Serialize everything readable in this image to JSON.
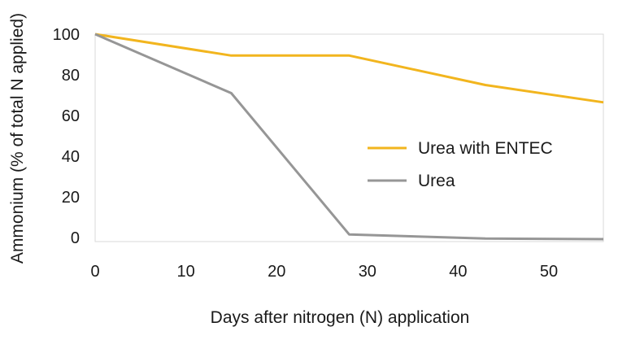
{
  "chart_data": {
    "type": "line",
    "title": "",
    "xlabel": "Days after nitrogen (N) application",
    "ylabel": "Ammonium (% of total N applied)",
    "xlim": [
      0,
      56
    ],
    "ylim": [
      0,
      100
    ],
    "xticks": [
      0,
      10,
      20,
      30,
      40,
      50
    ],
    "yticks": [
      0,
      20,
      40,
      60,
      80,
      100
    ],
    "grid": false,
    "legend_position": "right",
    "series": [
      {
        "name": "Urea with ENTEC",
        "color": "#F2B51E",
        "points": [
          [
            0,
            100
          ],
          [
            15,
            89.5
          ],
          [
            28,
            89.5
          ],
          [
            43,
            75
          ],
          [
            56,
            66.5
          ]
        ]
      },
      {
        "name": "Urea",
        "color": "#969696",
        "points": [
          [
            0,
            100
          ],
          [
            15,
            71
          ],
          [
            28,
            1.5
          ],
          [
            43,
            -0.5
          ],
          [
            56,
            -0.8
          ]
        ]
      }
    ]
  }
}
